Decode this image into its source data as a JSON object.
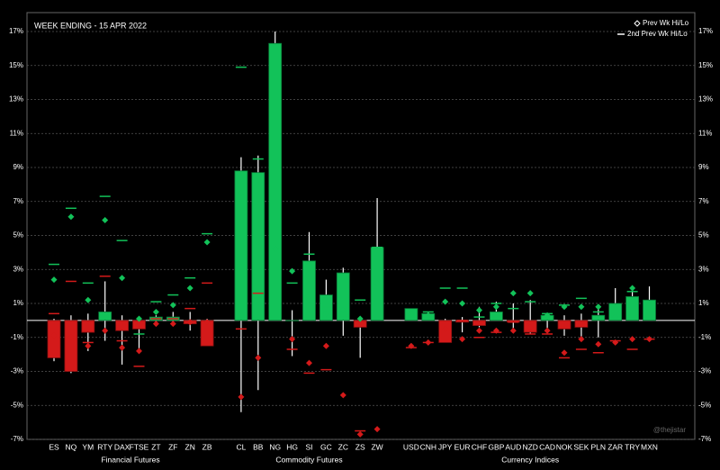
{
  "chart_data": {
    "type": "candlestick",
    "title": "WEEK ENDING - 15 APR 2022",
    "watermark": "@thejistar",
    "groups": [
      {
        "name": "Financial Futures",
        "categories": [
          "ES",
          "NQ",
          "YM",
          "RTY",
          "DAX",
          "FTSE",
          "ZT",
          "ZF",
          "ZN",
          "ZB"
        ]
      },
      {
        "name": "Commodity Futures",
        "categories": [
          "CL",
          "BB",
          "NG",
          "HG",
          "SI",
          "GC",
          "ZC",
          "ZS",
          "ZW"
        ]
      },
      {
        "name": "Currency Indices",
        "categories": [
          "USD",
          "CNH",
          "JPY",
          "EUR",
          "CHF",
          "GBP",
          "AUD",
          "NZD",
          "CAD",
          "NOK",
          "SEK",
          "PLN",
          "ZAR",
          "TRY",
          "MXN"
        ]
      }
    ],
    "up_color": "#12c259",
    "down_color": "#d41a1a",
    "close": [
      -2.2,
      -3.0,
      -0.7,
      0.5,
      -0.6,
      -0.5,
      0.2,
      0.2,
      -0.2,
      -1.5,
      8.8,
      8.7,
      16.3,
      0,
      3.5,
      1.5,
      2.8,
      -0.4,
      4.3,
      0.7,
      0.4,
      -1.3,
      -0.1,
      -0.3,
      0.5,
      -0.1,
      -0.7,
      0.3,
      -0.5,
      -0.4,
      0.3,
      1.0,
      1.4,
      1.2
    ],
    "high": [
      0.1,
      0.3,
      0.4,
      2.3,
      0.3,
      0.2,
      0.3,
      0.5,
      0.5,
      0.1,
      9.6,
      9.7,
      17.0,
      0.6,
      5.2,
      2.4,
      3.1,
      0.1,
      7.2,
      0.7,
      0.5,
      0.1,
      0.2,
      0.8,
      1.1,
      1.0,
      1.2,
      0.4,
      0.3,
      0.4,
      0.9,
      1.9,
      2.0,
      2.0
    ],
    "low": [
      -2.4,
      -3.1,
      -1.8,
      -1.2,
      -2.6,
      -1.9,
      -0.1,
      -0.1,
      -0.6,
      -1.5,
      -5.4,
      -4.1,
      0,
      -2.1,
      0,
      0,
      -0.9,
      -2.2,
      0,
      0,
      0,
      -1.3,
      -0.7,
      -0.4,
      0,
      -0.7,
      -0.8,
      -0.6,
      -0.9,
      -1.1,
      -1.0,
      0,
      0,
      0
    ],
    "prev": {
      "name": "Prev Wk Hi/Lo",
      "high": [
        2.4,
        6.1,
        1.2,
        5.9,
        2.5,
        0.1,
        0.5,
        0.9,
        1.9,
        4.6,
        7.5,
        4.6,
        4.2,
        2.9,
        1.2,
        0.4,
        0.6,
        0.1,
        2.2,
        0.4,
        0.3,
        1.1,
        1.0,
        0.6,
        0.8,
        1.6,
        1.6,
        0.3,
        0.8,
        0.8,
        0.8,
        0.2,
        1.9,
        0.6
      ],
      "low": [
        -0.9,
        -1.0,
        -1.5,
        -0.6,
        -1.6,
        -1.8,
        -0.2,
        -0.2,
        -0.1,
        -0.1,
        -4.5,
        -2.2,
        null,
        -1.1,
        -2.5,
        -1.5,
        -4.4,
        -6.7,
        -6.4,
        -1.5,
        -1.3,
        -0.5,
        -1.1,
        -0.6,
        -0.6,
        -0.6,
        -0.4,
        -0.6,
        -1.9,
        -1.1,
        -1.4,
        -1.3,
        -1.1,
        -1.1
      ]
    },
    "prev2": {
      "name": "2nd Prev Wk Hi/Lo",
      "high": [
        3.3,
        6.6,
        2.2,
        7.3,
        4.7,
        -0.8,
        1.1,
        1.5,
        2.5,
        5.1,
        14.9,
        9.5,
        null,
        2.2,
        3.9,
        0.8,
        0.2,
        1.2,
        4.3,
        0.6,
        0.5,
        1.9,
        1.9,
        0.2,
        1.0,
        0.7,
        1.1,
        0.4,
        0.9,
        1.3,
        0.5,
        0.9,
        1.7,
        0.6
      ],
      "low": [
        0.4,
        2.3,
        -1.3,
        2.6,
        -1.2,
        -2.7,
        0.1,
        0.1,
        0.7,
        2.2,
        -0.5,
        1.6,
        null,
        -1.7,
        -3.1,
        -2.9,
        null,
        -6.5,
        null,
        -1.6,
        -1.3,
        -0.3,
        0,
        -1.0,
        -0.7,
        -0.1,
        -0.8,
        -0.8,
        -2.2,
        -1.7,
        -1.9,
        -1.2,
        -1.7,
        -1.1
      ]
    },
    "ylim": [
      -7,
      17
    ],
    "yticks": [
      {
        "value": -7,
        "label": "-7%"
      },
      {
        "value": -5,
        "label": "-5%"
      },
      {
        "value": -3,
        "label": "-3%"
      },
      {
        "value": -1,
        "label": "-1%"
      },
      {
        "value": 1,
        "label": "1%"
      },
      {
        "value": 3,
        "label": "3%"
      },
      {
        "value": 5,
        "label": "5%"
      },
      {
        "value": 7,
        "label": "7%"
      },
      {
        "value": 9,
        "label": "9%"
      },
      {
        "value": 11,
        "label": "11%"
      },
      {
        "value": 13,
        "label": "13%"
      },
      {
        "value": 15,
        "label": "15%"
      },
      {
        "value": 17,
        "label": "17%"
      }
    ],
    "grid": true
  }
}
